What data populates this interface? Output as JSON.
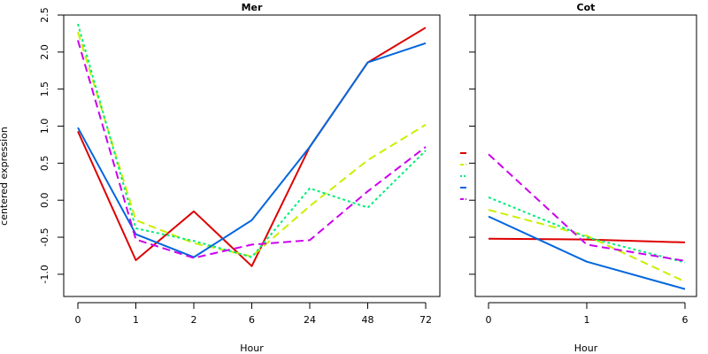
{
  "chart_data": {
    "type": "line",
    "ylabel": "centered expression",
    "yticks": [
      "-1.0",
      "-0.5",
      "0.0",
      "0.5",
      "1.0",
      "1.5",
      "2.0",
      "2.5"
    ],
    "ylim": [
      -1.3,
      2.5
    ],
    "colors": {
      "red": "#dd0000",
      "yellow": "#ccee00",
      "green": "#00ee77",
      "blue": "#0066dd",
      "magenta": "#cc00ee"
    },
    "line_styles": [
      "solid",
      "dashed",
      "dotted",
      "solid",
      "dashed"
    ],
    "legend_position": "between panels, right of left panel, unlabeled short line segments",
    "panels": [
      {
        "title": "Mer",
        "xlabel": "Hour",
        "categories": [
          "0",
          "1",
          "2",
          "6",
          "24",
          "48",
          "72"
        ],
        "series": [
          {
            "color_key": "red",
            "style": "solid",
            "values": [
              0.93,
              -0.81,
              -0.15,
              -0.89,
              0.72,
              1.86,
              2.33
            ]
          },
          {
            "color_key": "yellow",
            "style": "dashed",
            "values": [
              2.27,
              -0.27,
              -0.58,
              -0.76,
              -0.08,
              0.54,
              1.02
            ]
          },
          {
            "color_key": "green",
            "style": "dotted",
            "values": [
              2.38,
              -0.38,
              -0.55,
              -0.77,
              0.16,
              -0.1,
              0.67
            ]
          },
          {
            "color_key": "blue",
            "style": "solid",
            "values": [
              0.98,
              -0.46,
              -0.77,
              -0.27,
              0.72,
              1.86,
              2.12
            ]
          },
          {
            "color_key": "magenta",
            "style": "dashed",
            "values": [
              2.16,
              -0.53,
              -0.78,
              -0.6,
              -0.54,
              0.12,
              0.72
            ]
          }
        ]
      },
      {
        "title": "Cot",
        "xlabel": "Hour",
        "categories": [
          "0",
          "1",
          "6"
        ],
        "series": [
          {
            "color_key": "red",
            "style": "solid",
            "values": [
              -0.52,
              -0.53,
              -0.57
            ]
          },
          {
            "color_key": "yellow",
            "style": "dashed",
            "values": [
              -0.13,
              -0.48,
              -1.1
            ]
          },
          {
            "color_key": "green",
            "style": "dotted",
            "values": [
              0.04,
              -0.5,
              -0.84
            ]
          },
          {
            "color_key": "blue",
            "style": "solid",
            "values": [
              -0.22,
              -0.83,
              -1.2
            ]
          },
          {
            "color_key": "magenta",
            "style": "dashed",
            "values": [
              0.62,
              -0.6,
              -0.82
            ]
          }
        ]
      }
    ]
  }
}
